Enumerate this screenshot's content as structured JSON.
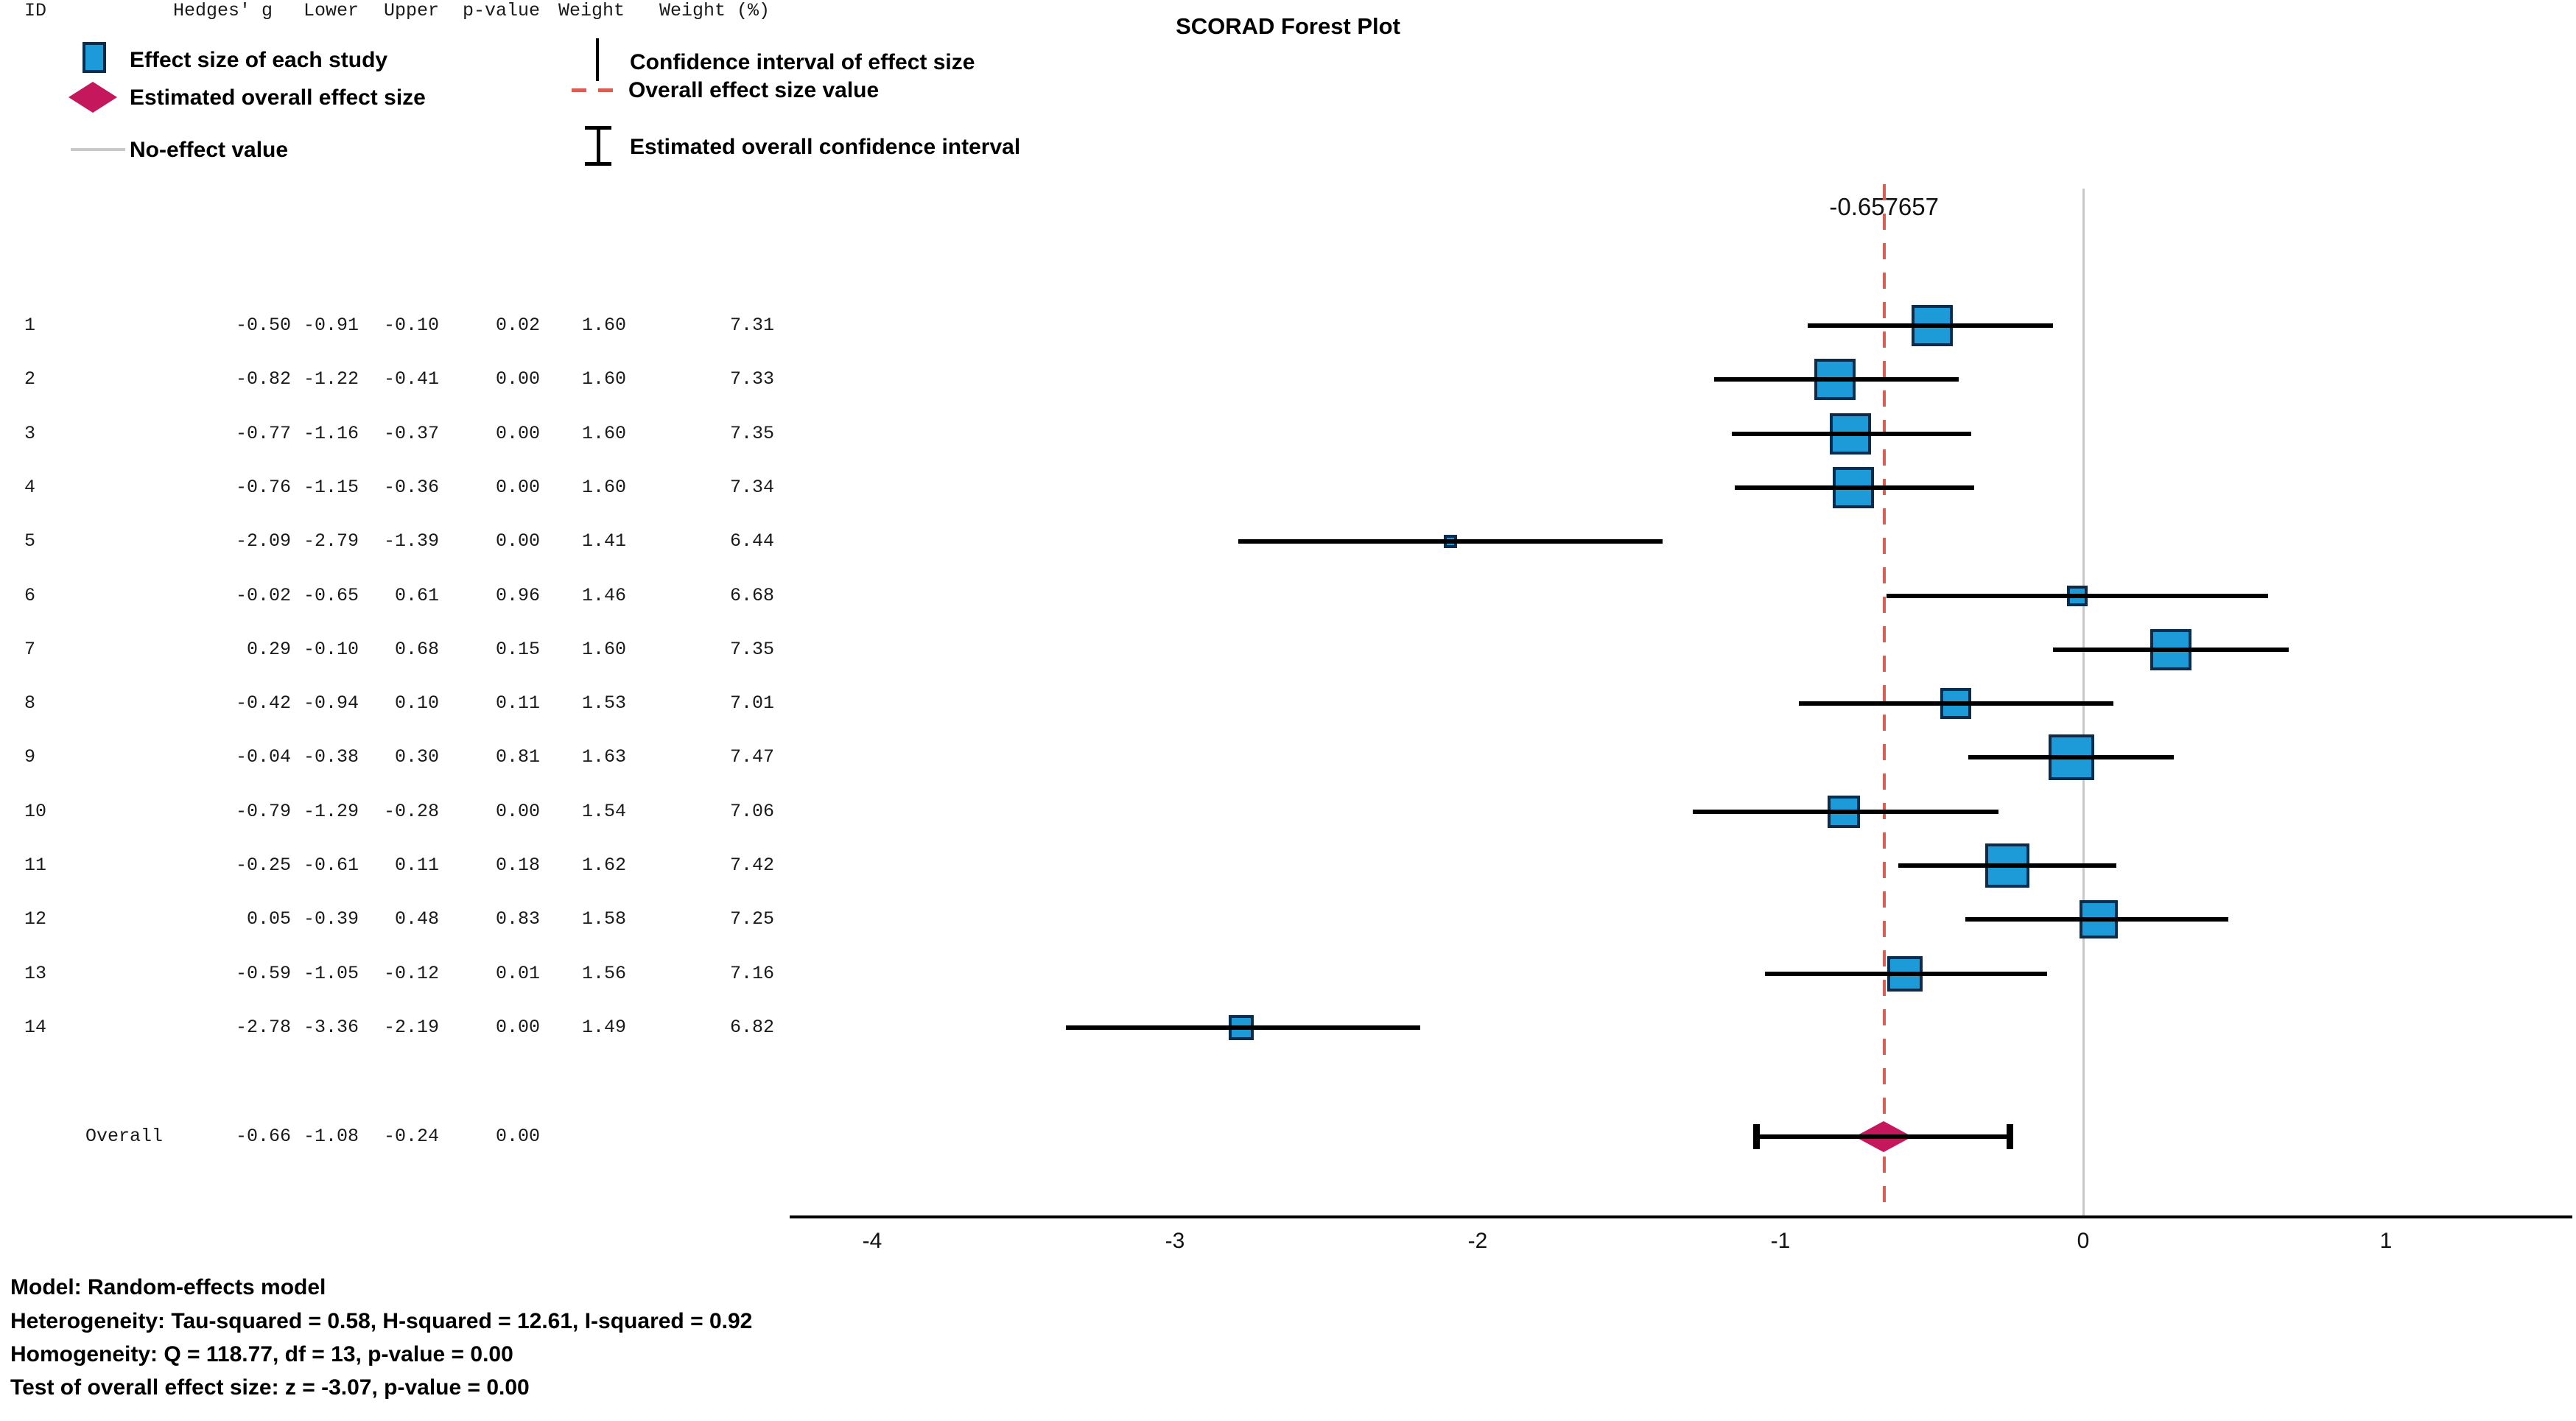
{
  "chart_data": {
    "type": "forest",
    "title": "SCORAD Forest Plot",
    "columns": [
      "ID",
      "Hedges' g",
      "Lower",
      "Upper",
      "p-value",
      "Weight",
      "Weight (%)"
    ],
    "studies": [
      {
        "id": "1",
        "g": -0.5,
        "lower": -0.91,
        "upper": -0.1,
        "p": 0.02,
        "weight": 1.6,
        "weight_pct": 7.31
      },
      {
        "id": "2",
        "g": -0.82,
        "lower": -1.22,
        "upper": -0.41,
        "p": 0.0,
        "weight": 1.6,
        "weight_pct": 7.33
      },
      {
        "id": "3",
        "g": -0.77,
        "lower": -1.16,
        "upper": -0.37,
        "p": 0.0,
        "weight": 1.6,
        "weight_pct": 7.35
      },
      {
        "id": "4",
        "g": -0.76,
        "lower": -1.15,
        "upper": -0.36,
        "p": 0.0,
        "weight": 1.6,
        "weight_pct": 7.34
      },
      {
        "id": "5",
        "g": -2.09,
        "lower": -2.79,
        "upper": -1.39,
        "p": 0.0,
        "weight": 1.41,
        "weight_pct": 6.44
      },
      {
        "id": "6",
        "g": -0.02,
        "lower": -0.65,
        "upper": 0.61,
        "p": 0.96,
        "weight": 1.46,
        "weight_pct": 6.68
      },
      {
        "id": "7",
        "g": 0.29,
        "lower": -0.1,
        "upper": 0.68,
        "p": 0.15,
        "weight": 1.6,
        "weight_pct": 7.35
      },
      {
        "id": "8",
        "g": -0.42,
        "lower": -0.94,
        "upper": 0.1,
        "p": 0.11,
        "weight": 1.53,
        "weight_pct": 7.01
      },
      {
        "id": "9",
        "g": -0.04,
        "lower": -0.38,
        "upper": 0.3,
        "p": 0.81,
        "weight": 1.63,
        "weight_pct": 7.47
      },
      {
        "id": "10",
        "g": -0.79,
        "lower": -1.29,
        "upper": -0.28,
        "p": 0.0,
        "weight": 1.54,
        "weight_pct": 7.06
      },
      {
        "id": "11",
        "g": -0.25,
        "lower": -0.61,
        "upper": 0.11,
        "p": 0.18,
        "weight": 1.62,
        "weight_pct": 7.42
      },
      {
        "id": "12",
        "g": 0.05,
        "lower": -0.39,
        "upper": 0.48,
        "p": 0.83,
        "weight": 1.58,
        "weight_pct": 7.25
      },
      {
        "id": "13",
        "g": -0.59,
        "lower": -1.05,
        "upper": -0.12,
        "p": 0.01,
        "weight": 1.56,
        "weight_pct": 7.16
      },
      {
        "id": "14",
        "g": -2.78,
        "lower": -3.36,
        "upper": -2.19,
        "p": 0.0,
        "weight": 1.49,
        "weight_pct": 6.82
      }
    ],
    "overall": {
      "label": "Overall",
      "g": -0.66,
      "lower": -1.08,
      "upper": -0.24,
      "p": 0.0
    },
    "overall_effect_value": -0.657657,
    "overall_effect_label": "-0.657657",
    "no_effect_value": 0,
    "x_axis": {
      "ticks": [
        -4,
        -3,
        -2,
        -1,
        0,
        1
      ],
      "range": [
        -4.27,
        1.61
      ],
      "grid": false
    }
  },
  "legend": {
    "left": [
      {
        "icon": "effect-size-square-icon",
        "label": "Effect size of each study"
      },
      {
        "icon": "overall-diamond-icon",
        "label": "Estimated overall effect size"
      },
      {
        "icon": "no-effect-line-icon",
        "label": "No-effect value"
      }
    ],
    "right": [
      {
        "icon": "ci-line-icon",
        "label": "Confidence interval of effect size"
      },
      {
        "icon": "overall-dash-line-icon",
        "label": "Overall effect size value"
      },
      {
        "icon": "overall-ci-ibeam-icon",
        "label": "Estimated overall confidence interval"
      }
    ]
  },
  "footnotes": [
    "Model: Random-effects model",
    "Heterogeneity: Tau-squared = 0.58, H-squared = 12.61, I-squared = 0.92",
    "Homogeneity: Q = 118.77, df = 13, p-value = 0.00",
    "Test of overall effect size: z = -3.07, p-value = 0.00"
  ],
  "colors": {
    "study_marker": "#1D9BD9",
    "study_marker_border": "#0B2D4D",
    "overall_marker": "#C4175C",
    "overall_effect_line": "#D95F55",
    "no_effect_line": "#C9C9C9",
    "ci_line": "#000000",
    "axis": "#000000"
  }
}
